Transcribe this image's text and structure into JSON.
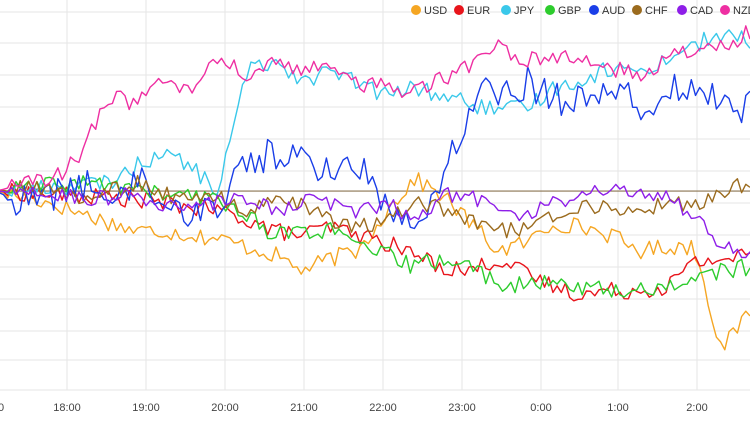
{
  "chart_data": {
    "type": "line",
    "title": "",
    "xlabel": "",
    "ylabel": "",
    "x_tick_labels": [
      "0",
      "18:00",
      "19:00",
      "20:00",
      "21:00",
      "22:00",
      "23:00",
      "0:00",
      "1:00",
      "2:00"
    ],
    "grid": true,
    "legend_position": "top-right",
    "baseline": {
      "value": 0,
      "color": "#8a7350"
    },
    "ylim": [
      -0.5,
      0.45
    ],
    "series": [
      {
        "name": "USD",
        "color": "#f5a623",
        "keypoints": [
          [
            0,
            0
          ],
          [
            2,
            -0.03
          ],
          [
            5,
            -0.1
          ],
          [
            6,
            -0.1
          ],
          [
            8,
            -0.12
          ],
          [
            9,
            -0.14
          ],
          [
            10,
            -0.16
          ],
          [
            11,
            -0.2
          ],
          [
            12,
            -0.17
          ],
          [
            13,
            -0.15
          ],
          [
            14,
            -0.05
          ],
          [
            15,
            0.03
          ],
          [
            16,
            -0.01
          ],
          [
            17,
            -0.08
          ],
          [
            18,
            -0.15
          ],
          [
            19,
            -0.13
          ],
          [
            20,
            -0.08
          ],
          [
            21,
            -0.09
          ],
          [
            22,
            -0.11
          ],
          [
            23,
            -0.15
          ],
          [
            24,
            -0.14
          ],
          [
            25,
            -0.14
          ],
          [
            26,
            -0.4
          ],
          [
            27,
            -0.3
          ]
        ]
      },
      {
        "name": "EUR",
        "color": "#e8141b",
        "keypoints": [
          [
            0,
            0
          ],
          [
            5,
            -0.02
          ],
          [
            8,
            -0.05
          ],
          [
            9,
            -0.07
          ],
          [
            10,
            -0.1
          ],
          [
            11,
            -0.11
          ],
          [
            12,
            -0.09
          ],
          [
            13,
            -0.11
          ],
          [
            14,
            -0.13
          ],
          [
            15,
            -0.16
          ],
          [
            16,
            -0.19
          ],
          [
            17,
            -0.2
          ],
          [
            18,
            -0.17
          ],
          [
            19,
            -0.21
          ],
          [
            20,
            -0.24
          ],
          [
            21,
            -0.26
          ],
          [
            22,
            -0.25
          ],
          [
            23,
            -0.25
          ],
          [
            24,
            -0.24
          ],
          [
            25,
            -0.18
          ],
          [
            26,
            -0.17
          ],
          [
            27,
            -0.16
          ]
        ]
      },
      {
        "name": "JPY",
        "color": "#3ac8ea",
        "keypoints": [
          [
            0,
            0
          ],
          [
            4,
            0.02
          ],
          [
            5,
            0.06
          ],
          [
            6,
            0.1
          ],
          [
            7,
            0.06
          ],
          [
            8,
            0.0
          ],
          [
            9,
            0.3
          ],
          [
            10,
            0.33
          ],
          [
            11,
            0.28
          ],
          [
            12,
            0.3
          ],
          [
            13,
            0.27
          ],
          [
            14,
            0.24
          ],
          [
            15,
            0.26
          ],
          [
            16,
            0.24
          ],
          [
            17,
            0.22
          ],
          [
            18,
            0.2
          ],
          [
            19,
            0.21
          ],
          [
            20,
            0.26
          ],
          [
            21,
            0.28
          ],
          [
            22,
            0.31
          ],
          [
            23,
            0.3
          ],
          [
            24,
            0.33
          ],
          [
            25,
            0.37
          ],
          [
            26,
            0.39
          ],
          [
            27,
            0.38
          ]
        ]
      },
      {
        "name": "GBP",
        "color": "#2dcc2d",
        "keypoints": [
          [
            0,
            0
          ],
          [
            3,
            0.02
          ],
          [
            5,
            0.01
          ],
          [
            6,
            -0.01
          ],
          [
            8,
            -0.02
          ],
          [
            9,
            -0.06
          ],
          [
            10,
            -0.11
          ],
          [
            11,
            -0.1
          ],
          [
            12,
            -0.1
          ],
          [
            13,
            -0.14
          ],
          [
            14,
            -0.16
          ],
          [
            15,
            -0.19
          ],
          [
            16,
            -0.17
          ],
          [
            17,
            -0.19
          ],
          [
            18,
            -0.23
          ],
          [
            19,
            -0.24
          ],
          [
            20,
            -0.23
          ],
          [
            21,
            -0.24
          ],
          [
            22,
            -0.25
          ],
          [
            23,
            -0.25
          ],
          [
            24,
            -0.24
          ],
          [
            25,
            -0.22
          ],
          [
            26,
            -0.2
          ],
          [
            27,
            -0.19
          ]
        ]
      },
      {
        "name": "AUD",
        "color": "#1a3ee8",
        "keypoints": [
          [
            0,
            0
          ],
          [
            1,
            -0.03
          ],
          [
            2,
            -0.01
          ],
          [
            3,
            0.02
          ],
          [
            4,
            -0.02
          ],
          [
            5,
            0.03
          ],
          [
            6,
            -0.01
          ],
          [
            7,
            -0.06
          ],
          [
            8,
            -0.03
          ],
          [
            9,
            0.08
          ],
          [
            10,
            0.09
          ],
          [
            11,
            0.08
          ],
          [
            12,
            0.05
          ],
          [
            13,
            0.07
          ],
          [
            14,
            -0.04
          ],
          [
            15,
            -0.06
          ],
          [
            16,
            0.02
          ],
          [
            17,
            0.23
          ],
          [
            18,
            0.26
          ],
          [
            19,
            0.27
          ],
          [
            20,
            0.24
          ],
          [
            21,
            0.22
          ],
          [
            22,
            0.28
          ],
          [
            23,
            0.2
          ],
          [
            24,
            0.25
          ],
          [
            25,
            0.28
          ],
          [
            26,
            0.2
          ],
          [
            27,
            0.22
          ]
        ]
      },
      {
        "name": "CHF",
        "color": "#9b6b1e",
        "keypoints": [
          [
            0,
            0
          ],
          [
            2,
            0.01
          ],
          [
            3,
            -0.02
          ],
          [
            5,
            0.02
          ],
          [
            6,
            -0.01
          ],
          [
            8,
            -0.02
          ],
          [
            9,
            -0.05
          ],
          [
            10,
            -0.03
          ],
          [
            11,
            -0.04
          ],
          [
            12,
            -0.07
          ],
          [
            13,
            -0.09
          ],
          [
            14,
            -0.08
          ],
          [
            15,
            -0.02
          ],
          [
            16,
            -0.05
          ],
          [
            17,
            -0.08
          ],
          [
            18,
            -0.1
          ],
          [
            19,
            -0.09
          ],
          [
            20,
            -0.06
          ],
          [
            21,
            -0.04
          ],
          [
            22,
            -0.04
          ],
          [
            23,
            -0.05
          ],
          [
            24,
            -0.03
          ],
          [
            25,
            -0.04
          ],
          [
            26,
            0.0
          ],
          [
            27,
            0.02
          ]
        ]
      },
      {
        "name": "CAD",
        "color": "#8e1ee8",
        "keypoints": [
          [
            0,
            0
          ],
          [
            4,
            -0.02
          ],
          [
            5,
            -0.01
          ],
          [
            6,
            -0.04
          ],
          [
            8,
            -0.03
          ],
          [
            9,
            -0.02
          ],
          [
            10,
            -0.05
          ],
          [
            11,
            -0.02
          ],
          [
            12,
            -0.03
          ],
          [
            13,
            -0.06
          ],
          [
            14,
            -0.03
          ],
          [
            15,
            -0.07
          ],
          [
            16,
            -0.01
          ],
          [
            17,
            -0.01
          ],
          [
            18,
            -0.04
          ],
          [
            19,
            -0.06
          ],
          [
            20,
            -0.03
          ],
          [
            21,
            -0.01
          ],
          [
            22,
            0.01
          ],
          [
            23,
            -0.01
          ],
          [
            24,
            0.0
          ],
          [
            25,
            -0.07
          ],
          [
            26,
            -0.13
          ],
          [
            27,
            -0.16
          ]
        ]
      },
      {
        "name": "NZD",
        "color": "#ee2fa2",
        "keypoints": [
          [
            0,
            0
          ],
          [
            2,
            0.03
          ],
          [
            3,
            0.08
          ],
          [
            4,
            0.24
          ],
          [
            5,
            0.22
          ],
          [
            6,
            0.28
          ],
          [
            7,
            0.25
          ],
          [
            8,
            0.33
          ],
          [
            9,
            0.29
          ],
          [
            10,
            0.32
          ],
          [
            11,
            0.3
          ],
          [
            12,
            0.31
          ],
          [
            13,
            0.27
          ],
          [
            14,
            0.26
          ],
          [
            15,
            0.25
          ],
          [
            16,
            0.28
          ],
          [
            17,
            0.32
          ],
          [
            18,
            0.36
          ],
          [
            19,
            0.33
          ],
          [
            20,
            0.34
          ],
          [
            21,
            0.32
          ],
          [
            22,
            0.31
          ],
          [
            23,
            0.29
          ],
          [
            24,
            0.33
          ],
          [
            25,
            0.35
          ],
          [
            26,
            0.36
          ],
          [
            27,
            0.4
          ]
        ]
      }
    ]
  }
}
